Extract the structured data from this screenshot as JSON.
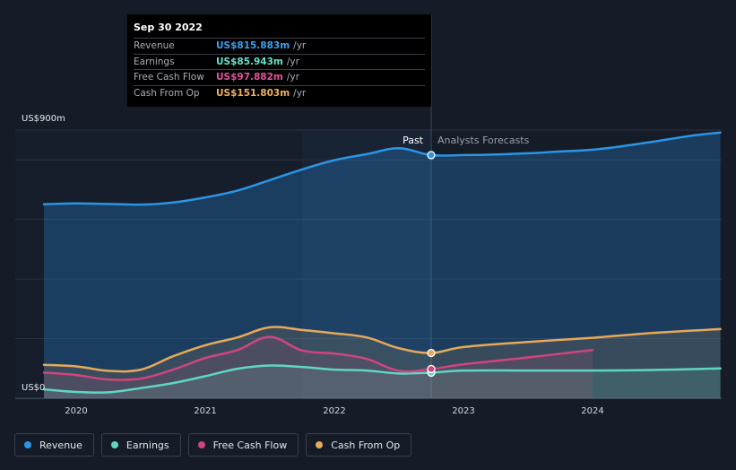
{
  "chart_data": {
    "type": "line",
    "y_axis": {
      "top_label": "US$900m",
      "bottom_label": "US$0",
      "ylim": [
        0,
        900
      ],
      "grid": true
    },
    "x_ticks": [
      "2020",
      "2021",
      "2022",
      "2023",
      "2024"
    ],
    "regions": {
      "past_label": "Past",
      "forecast_label": "Analysts Forecasts"
    },
    "series": [
      {
        "name": "Revenue",
        "color": "#2b95e6",
        "area": true,
        "points": [
          [
            2019.75,
            651
          ],
          [
            2020.0,
            654
          ],
          [
            2020.25,
            652
          ],
          [
            2020.5,
            650
          ],
          [
            2020.75,
            657
          ],
          [
            2021.0,
            674
          ],
          [
            2021.25,
            697
          ],
          [
            2021.5,
            732
          ],
          [
            2021.75,
            768
          ],
          [
            2022.0,
            799
          ],
          [
            2022.25,
            819
          ],
          [
            2022.5,
            839
          ],
          [
            2022.75,
            816
          ],
          [
            2023.0,
            816
          ],
          [
            2023.25,
            818
          ],
          [
            2023.5,
            822
          ],
          [
            2023.75,
            828
          ],
          [
            2024.0,
            834
          ],
          [
            2024.25,
            847
          ],
          [
            2024.5,
            863
          ],
          [
            2024.75,
            880
          ],
          [
            2024.99,
            892
          ]
        ]
      },
      {
        "name": "Earnings",
        "color": "#5fd6c3",
        "area": true,
        "points": [
          [
            2019.75,
            30
          ],
          [
            2020.0,
            21
          ],
          [
            2020.25,
            20
          ],
          [
            2020.5,
            34
          ],
          [
            2020.75,
            51
          ],
          [
            2021.0,
            74
          ],
          [
            2021.25,
            99
          ],
          [
            2021.5,
            110
          ],
          [
            2021.75,
            105
          ],
          [
            2022.0,
            96
          ],
          [
            2022.25,
            93
          ],
          [
            2022.5,
            83
          ],
          [
            2022.75,
            86
          ],
          [
            2023.0,
            93
          ],
          [
            2023.5,
            93
          ],
          [
            2024.0,
            93
          ],
          [
            2024.5,
            95
          ],
          [
            2024.99,
            100
          ]
        ]
      },
      {
        "name": "Free Cash Flow",
        "color": "#d0457e",
        "area": true,
        "points": [
          [
            2019.75,
            86
          ],
          [
            2020.0,
            78
          ],
          [
            2020.25,
            63
          ],
          [
            2020.5,
            66
          ],
          [
            2020.75,
            96
          ],
          [
            2021.0,
            135
          ],
          [
            2021.25,
            162
          ],
          [
            2021.5,
            206
          ],
          [
            2021.75,
            160
          ],
          [
            2022.0,
            150
          ],
          [
            2022.25,
            132
          ],
          [
            2022.5,
            92
          ],
          [
            2022.75,
            98
          ],
          [
            2023.0,
            114
          ],
          [
            2023.5,
            137
          ],
          [
            2024.0,
            162
          ]
        ]
      },
      {
        "name": "Cash From Op",
        "color": "#e8a85a",
        "area": true,
        "points": [
          [
            2019.75,
            112
          ],
          [
            2020.0,
            107
          ],
          [
            2020.25,
            92
          ],
          [
            2020.5,
            96
          ],
          [
            2020.75,
            141
          ],
          [
            2021.0,
            178
          ],
          [
            2021.25,
            204
          ],
          [
            2021.5,
            238
          ],
          [
            2021.75,
            229
          ],
          [
            2022.0,
            218
          ],
          [
            2022.25,
            204
          ],
          [
            2022.5,
            168
          ],
          [
            2022.75,
            152
          ],
          [
            2023.0,
            172
          ],
          [
            2023.5,
            189
          ],
          [
            2024.0,
            203
          ],
          [
            2024.5,
            220
          ],
          [
            2024.99,
            232
          ]
        ]
      }
    ]
  },
  "tooltip": {
    "date": "Sep 30 2022",
    "rows": [
      {
        "name": "Revenue",
        "value": "US$815.883m",
        "unit": "/yr",
        "color": "#3aa0f0"
      },
      {
        "name": "Earnings",
        "value": "US$85.943m",
        "unit": "/yr",
        "color": "#67e0cb"
      },
      {
        "name": "Free Cash Flow",
        "value": "US$97.882m",
        "unit": "/yr",
        "color": "#e0559a"
      },
      {
        "name": "Cash From Op",
        "value": "US$151.803m",
        "unit": "/yr",
        "color": "#f0b060"
      }
    ]
  },
  "legend": [
    {
      "label": "Revenue",
      "color": "#2b95e6"
    },
    {
      "label": "Earnings",
      "color": "#5fd6c3"
    },
    {
      "label": "Free Cash Flow",
      "color": "#d0457e"
    },
    {
      "label": "Cash From Op",
      "color": "#e8a85a"
    }
  ]
}
